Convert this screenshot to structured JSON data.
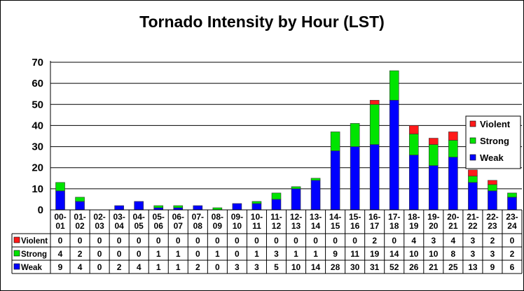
{
  "chart_data": {
    "type": "bar",
    "stacked": true,
    "title": "Tornado Intensity by Hour (LST)",
    "categories": [
      [
        "00-",
        "01"
      ],
      [
        "01-",
        "02"
      ],
      [
        "02-",
        "03"
      ],
      [
        "03-",
        "04"
      ],
      [
        "04-",
        "05"
      ],
      [
        "05-",
        "06"
      ],
      [
        "06-",
        "07"
      ],
      [
        "07-",
        "08"
      ],
      [
        "08-",
        "09"
      ],
      [
        "09-",
        "10"
      ],
      [
        "10-",
        "11"
      ],
      [
        "11-",
        "12"
      ],
      [
        "12-",
        "13"
      ],
      [
        "13-",
        "14"
      ],
      [
        "14-",
        "15"
      ],
      [
        "15-",
        "16"
      ],
      [
        "16-",
        "17"
      ],
      [
        "17-",
        "18"
      ],
      [
        "18-",
        "19"
      ],
      [
        "19-",
        "20"
      ],
      [
        "20-",
        "21"
      ],
      [
        "21-",
        "22"
      ],
      [
        "22-",
        "23"
      ],
      [
        "23-",
        "24"
      ]
    ],
    "series": [
      {
        "name": "Weak",
        "color": "#0000ff",
        "values": [
          9,
          4,
          0,
          2,
          4,
          1,
          1,
          2,
          0,
          3,
          3,
          5,
          10,
          14,
          28,
          30,
          31,
          52,
          26,
          21,
          25,
          13,
          9,
          6
        ]
      },
      {
        "name": "Strong",
        "color": "#00e400",
        "values": [
          4,
          2,
          0,
          0,
          0,
          1,
          1,
          0,
          1,
          0,
          1,
          3,
          1,
          1,
          9,
          11,
          19,
          14,
          10,
          10,
          8,
          3,
          3,
          2
        ]
      },
      {
        "name": "Violent",
        "color": "#ff1a1a",
        "values": [
          0,
          0,
          0,
          0,
          0,
          0,
          0,
          0,
          0,
          0,
          0,
          0,
          0,
          0,
          0,
          0,
          2,
          0,
          4,
          3,
          4,
          3,
          2,
          0
        ]
      }
    ],
    "y_ticks": [
      "0",
      "10",
      "20",
      "30",
      "40",
      "50",
      "60",
      "70"
    ],
    "ylim": [
      0,
      70
    ],
    "grid": true,
    "legend_position": "right",
    "data_table": true
  }
}
